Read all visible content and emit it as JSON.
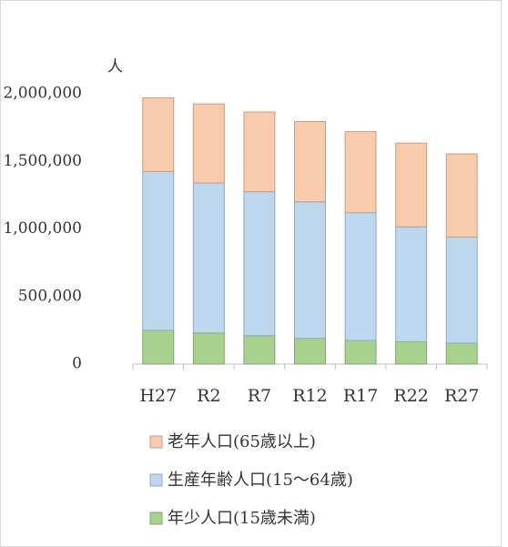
{
  "chart_data": {
    "type": "stacked_bar",
    "y_axis_label": "人",
    "categories": [
      "H27",
      "R2",
      "R7",
      "R12",
      "R17",
      "R22",
      "R27"
    ],
    "series": [
      {
        "name": "年少人口(15歳未満)",
        "color": "#a9d18e",
        "values": [
          250000,
          230000,
          210000,
          190000,
          175000,
          165000,
          155000
        ]
      },
      {
        "name": "生産年齢人口(15〜64歳)",
        "color": "#bdd7ee",
        "values": [
          1175000,
          1110000,
          1065000,
          1010000,
          945000,
          850000,
          785000
        ]
      },
      {
        "name": "老年人口(65歳以上)",
        "color": "#f8cbad",
        "values": [
          545000,
          585000,
          590000,
          595000,
          600000,
          620000,
          615000
        ]
      }
    ],
    "ylim": [
      0,
      2000000
    ],
    "yticks": [
      0,
      {
        "value": 500000,
        "label": "500,000"
      },
      {
        "value": 1000000,
        "label": "1,000,000"
      },
      {
        "value": 1500000,
        "label": "1,500,000"
      },
      {
        "value": 2000000,
        "label": "2,000,000"
      }
    ],
    "grid": false
  }
}
